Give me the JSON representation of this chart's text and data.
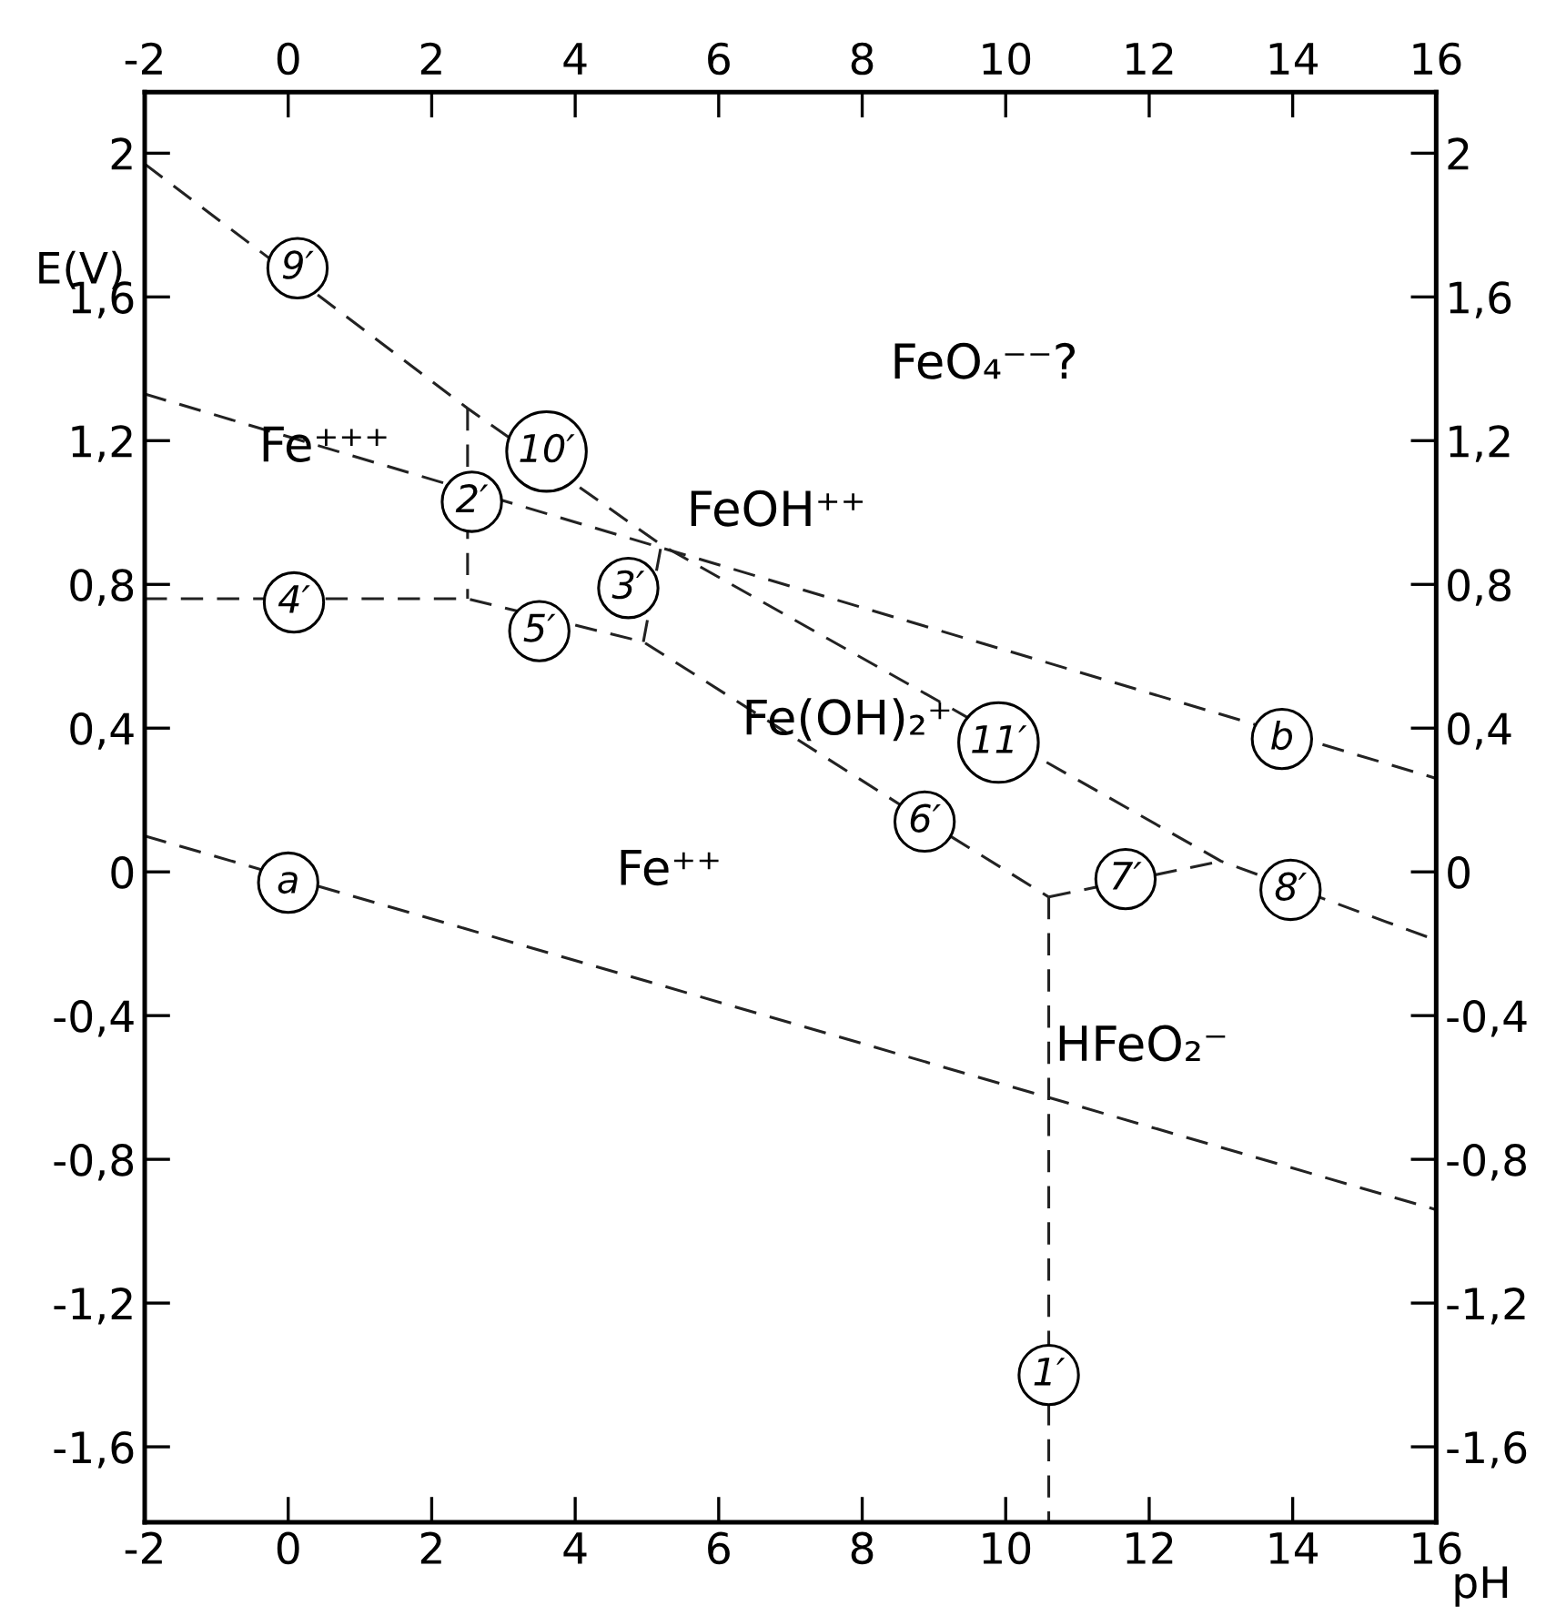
{
  "chart_data": {
    "type": "line",
    "xlabel": "pH",
    "ylabel": "E(V)",
    "line_style": "dashed",
    "grid": false,
    "legend": false,
    "xlim": [
      -2,
      16
    ],
    "ylim": [
      -1.81,
      2.17
    ],
    "xticks": [
      -2,
      0,
      2,
      4,
      6,
      8,
      10,
      12,
      14,
      16
    ],
    "yticks": [
      {
        "value": 2,
        "label": "2"
      },
      {
        "value": 1.6,
        "label": "1,6"
      },
      {
        "value": 1.2,
        "label": "1,2"
      },
      {
        "value": 0.8,
        "label": "0,8"
      },
      {
        "value": 0.4,
        "label": "0,4"
      },
      {
        "value": 0,
        "label": "0"
      },
      {
        "value": -0.4,
        "label": "-0,4"
      },
      {
        "value": -0.8,
        "label": "-0,8"
      },
      {
        "value": -1.2,
        "label": "-1,2"
      },
      {
        "value": -1.6,
        "label": "-1,6"
      }
    ],
    "x2lim": [
      -2,
      16
    ],
    "x2ticks": [
      -2,
      0,
      2,
      4,
      6,
      8,
      10,
      12,
      14,
      16
    ],
    "y2lim": [
      -1.81,
      2.17
    ],
    "y2ticks": [
      {
        "value": 2,
        "label": "2"
      },
      {
        "value": 1.6,
        "label": "1,6"
      },
      {
        "value": 1.2,
        "label": "1,2"
      },
      {
        "value": 0.8,
        "label": "0,8"
      },
      {
        "value": 0.4,
        "label": "0,4"
      },
      {
        "value": 0,
        "label": "0"
      },
      {
        "value": -0.4,
        "label": "-0,4"
      },
      {
        "value": -0.8,
        "label": "-0,8"
      },
      {
        "value": -1.2,
        "label": "-1,2"
      },
      {
        "value": -1.6,
        "label": "-1,6"
      }
    ],
    "series": [
      {
        "color": "#222222",
        "x": [
          -2,
          16
        ],
        "values": [
          0.1,
          -0.94
        ]
      },
      {
        "color": "#222222",
        "x": [
          -2,
          16
        ],
        "values": [
          1.33,
          0.26
        ]
      },
      {
        "color": "#222222",
        "x": [
          -2,
          2.5,
          5.2,
          9.2,
          13.0,
          16
        ],
        "values": [
          1.97,
          1.29,
          0.91,
          0.46,
          0.03,
          -0.19
        ]
      },
      {
        "color": "#222222",
        "x": [
          2.5,
          2.5
        ],
        "values": [
          1.29,
          0.76
        ]
      },
      {
        "color": "#222222",
        "x": [
          -2,
          2.5,
          4.95,
          8.9,
          10.6
        ],
        "values": [
          0.76,
          0.76,
          0.64,
          0.14,
          -0.07
        ]
      },
      {
        "color": "#222222",
        "x": [
          4.95,
          5.2
        ],
        "values": [
          0.64,
          0.91
        ]
      },
      {
        "color": "#222222",
        "x": [
          10.6,
          13.0
        ],
        "values": [
          -0.07,
          0.03
        ]
      },
      {
        "color": "#222222",
        "x": [
          10.6,
          10.6
        ],
        "values": [
          -0.07,
          -1.81
        ]
      }
    ],
    "annotations": [
      {
        "text": "9′",
        "x": 0.13,
        "y": 1.68
      },
      {
        "text": "10′",
        "x": 3.6,
        "y": 1.17
      },
      {
        "text": "2′",
        "x": 2.56,
        "y": 1.03
      },
      {
        "text": "4′",
        "x": 0.08,
        "y": 0.75
      },
      {
        "text": "5′",
        "x": 3.5,
        "y": 0.67
      },
      {
        "text": "3′",
        "x": 4.74,
        "y": 0.79
      },
      {
        "text": "11′",
        "x": 9.9,
        "y": 0.36
      },
      {
        "text": "b",
        "x": 13.85,
        "y": 0.37
      },
      {
        "text": "6′",
        "x": 8.87,
        "y": 0.14
      },
      {
        "text": "7′",
        "x": 11.67,
        "y": -0.02
      },
      {
        "text": "8′",
        "x": 13.97,
        "y": -0.05
      },
      {
        "text": "1′",
        "x": 10.6,
        "y": -1.4
      },
      {
        "text": "a",
        "x": 0,
        "y": -0.03
      },
      "FeO₄⁻⁻?",
      "Fe⁺⁺⁺",
      "FeOH⁺⁺",
      "Fe(OH)₂⁺",
      "Fe⁺⁺",
      "HFeO₂⁻"
    ]
  }
}
